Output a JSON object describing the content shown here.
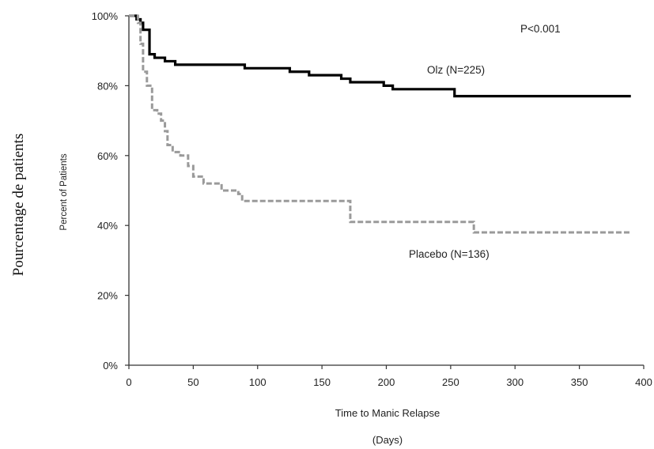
{
  "chart_data": {
    "type": "line",
    "outer_ylabel": "Pourcentage de patients",
    "ylabel": "Percent of Patients",
    "xlabel": "Time to Manic Relapse",
    "xlabel_unit": "(Days)",
    "xlim": [
      0,
      400
    ],
    "ylim": [
      0,
      100
    ],
    "x_ticks": [
      0,
      50,
      100,
      150,
      200,
      250,
      300,
      350,
      400
    ],
    "x_tick_labels": [
      "0",
      "50",
      "100",
      "150",
      "200",
      "250",
      "300",
      "350",
      "400"
    ],
    "y_ticks": [
      0,
      20,
      40,
      60,
      80,
      100
    ],
    "y_tick_labels": [
      "0%",
      "20%",
      "40%",
      "60%",
      "80%",
      "100%"
    ],
    "p_value": "P<0.001",
    "series": [
      {
        "name": "Olz (N=225)",
        "color": "#000000",
        "style": "solid",
        "x": [
          0,
          6,
          9,
          11,
          16,
          20,
          28,
          36,
          90,
          125,
          140,
          165,
          172,
          185,
          198,
          205,
          253,
          390
        ],
        "y": [
          100,
          99,
          98,
          96,
          89,
          88,
          87,
          86,
          85,
          84,
          83,
          82,
          81,
          81,
          80,
          79,
          77,
          77
        ]
      },
      {
        "name": "Placebo (N=136)",
        "color": "#9a9a9a",
        "style": "dashed",
        "x": [
          0,
          7,
          9,
          11,
          14,
          18,
          22,
          25,
          28,
          30,
          34,
          40,
          46,
          50,
          58,
          72,
          85,
          88,
          95,
          170,
          172,
          266,
          268,
          390
        ],
        "y": [
          100,
          98,
          92,
          84,
          80,
          73,
          72,
          70,
          67,
          63,
          61,
          60,
          57,
          54,
          52,
          50,
          49,
          47,
          47,
          47,
          41,
          41,
          38,
          38
        ]
      }
    ]
  }
}
